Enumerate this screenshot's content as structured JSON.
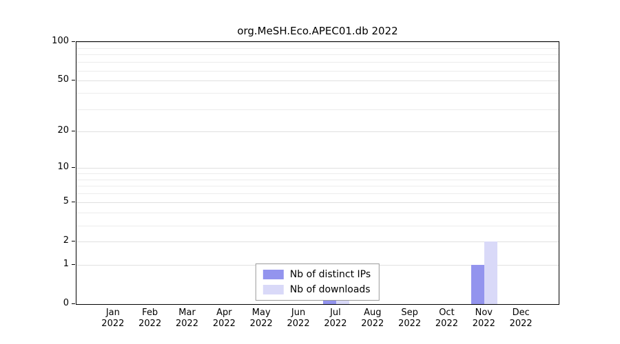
{
  "title": "org.MeSH.Eco.APEC01.db 2022",
  "chart_data": {
    "type": "bar",
    "title": "org.MeSH.Eco.APEC01.db 2022",
    "categories": [
      "Jan",
      "Feb",
      "Mar",
      "Apr",
      "May",
      "Jun",
      "Jul",
      "Aug",
      "Sep",
      "Oct",
      "Nov",
      "Dec"
    ],
    "year_label": "2022",
    "series": [
      {
        "name": "Nb of distinct IPs",
        "color": "#9394ee",
        "values": [
          0,
          0,
          0,
          0,
          0,
          0,
          1,
          0,
          0,
          0,
          1,
          0
        ]
      },
      {
        "name": "Nb of downloads",
        "color": "#d9d9f8",
        "values": [
          0,
          0,
          0,
          0,
          0,
          0,
          1,
          0,
          0,
          0,
          2,
          0
        ]
      }
    ],
    "xlabel": "",
    "ylabel": "",
    "ylim": [
      0,
      100
    ],
    "scale": "log1p",
    "y_ticks": [
      0,
      1,
      2,
      5,
      10,
      20,
      50,
      100
    ],
    "minor_ticks": [
      1,
      2,
      3,
      4,
      5,
      6,
      7,
      8,
      9,
      10,
      20,
      30,
      40,
      50,
      60,
      70,
      80,
      90,
      100
    ],
    "grid": "horizontal",
    "legend_position": "bottom-center"
  }
}
